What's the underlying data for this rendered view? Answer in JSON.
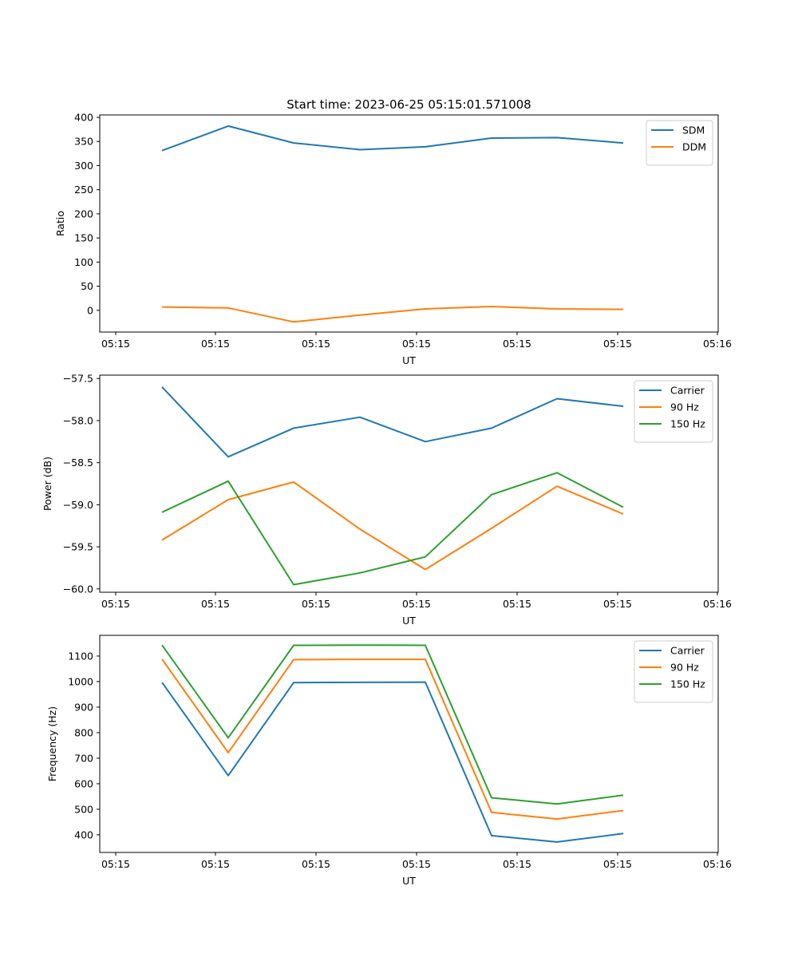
{
  "figure_title": "Start time: 2023-06-25 05:15:01.571008",
  "chart_data": [
    {
      "type": "line",
      "title": "Start time: 2023-06-25 05:15:01.571008",
      "xlabel": "UT",
      "ylabel": "Ratio",
      "x_tick_labels": [
        "05:15",
        "05:15",
        "05:15",
        "05:15",
        "05:15",
        "05:15",
        "05:16"
      ],
      "y_ticks": [
        0,
        50,
        100,
        150,
        200,
        250,
        300,
        350,
        400
      ],
      "y_tick_labels": [
        "0",
        "50",
        "100",
        "150",
        "200",
        "250",
        "300",
        "350",
        "400"
      ],
      "ylim": [
        -45,
        405
      ],
      "x_points": 8,
      "legend": "top-right",
      "series": [
        {
          "name": "SDM",
          "color": "#1f77b4",
          "values": [
            331,
            382,
            347,
            333,
            339,
            357,
            358,
            347
          ]
        },
        {
          "name": "DDM",
          "color": "#ff7f0e",
          "values": [
            7,
            5,
            -24,
            -10,
            3,
            8,
            3,
            2
          ]
        }
      ]
    },
    {
      "type": "line",
      "xlabel": "UT",
      "ylabel": "Power (dB)",
      "x_tick_labels": [
        "05:15",
        "05:15",
        "05:15",
        "05:15",
        "05:15",
        "05:15",
        "05:16"
      ],
      "y_ticks": [
        -60.0,
        -59.5,
        -59.0,
        -58.5,
        -58.0,
        -57.5
      ],
      "y_tick_labels": [
        "−60.0",
        "−59.5",
        "−59.0",
        "−58.5",
        "−58.0",
        "−57.5"
      ],
      "ylim": [
        -60.04,
        -57.46
      ],
      "x_points": 8,
      "legend": "top-right",
      "series": [
        {
          "name": "Carrier",
          "color": "#1f77b4",
          "values": [
            -57.6,
            -58.43,
            -58.09,
            -57.96,
            -58.25,
            -58.09,
            -57.74,
            -57.83
          ]
        },
        {
          "name": "90 Hz",
          "color": "#ff7f0e",
          "values": [
            -59.42,
            -58.94,
            -58.73,
            -59.29,
            -59.77,
            -59.28,
            -58.78,
            -59.11
          ]
        },
        {
          "name": "150 Hz",
          "color": "#2ca02c",
          "values": [
            -59.09,
            -58.72,
            -59.95,
            -59.81,
            -59.62,
            -58.88,
            -58.62,
            -59.03
          ]
        }
      ]
    },
    {
      "type": "line",
      "xlabel": "UT",
      "ylabel": "Frequency (Hz)",
      "x_tick_labels": [
        "05:15",
        "05:15",
        "05:15",
        "05:15",
        "05:15",
        "05:15",
        "05:16"
      ],
      "y_ticks": [
        400,
        500,
        600,
        700,
        800,
        900,
        1000,
        1100
      ],
      "y_tick_labels": [
        "400",
        "500",
        "600",
        "700",
        "800",
        "900",
        "1000",
        "1100"
      ],
      "ylim": [
        331,
        1181
      ],
      "x_points": 8,
      "legend": "top-right",
      "series": [
        {
          "name": "Carrier",
          "color": "#1f77b4",
          "values": [
            997,
            632,
            996,
            997,
            998,
            397,
            372,
            405
          ]
        },
        {
          "name": "90 Hz",
          "color": "#ff7f0e",
          "values": [
            1088,
            722,
            1086,
            1087,
            1087,
            488,
            462,
            495
          ]
        },
        {
          "name": "150 Hz",
          "color": "#2ca02c",
          "values": [
            1143,
            780,
            1142,
            1143,
            1142,
            545,
            521,
            555
          ]
        }
      ]
    }
  ]
}
